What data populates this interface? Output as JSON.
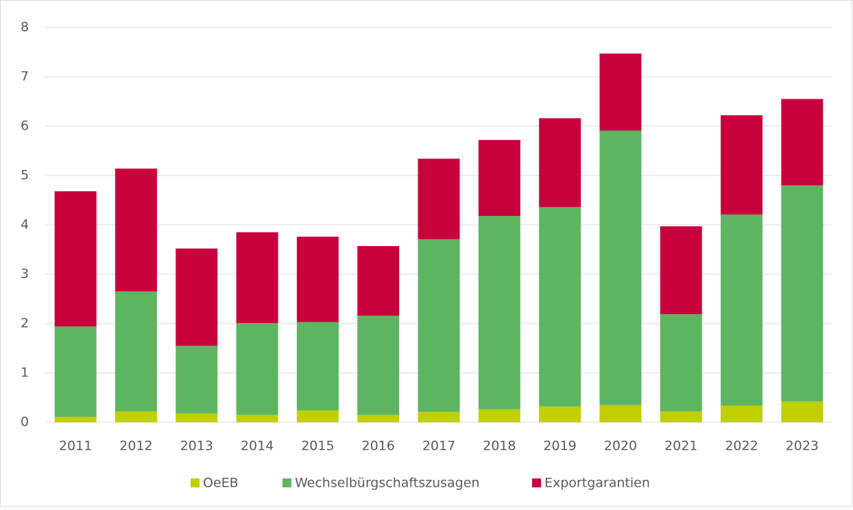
{
  "chart_data": {
    "type": "stacked_bar",
    "categories": [
      "2011",
      "2012",
      "2013",
      "2014",
      "2015",
      "2016",
      "2017",
      "2018",
      "2019",
      "2020",
      "2021",
      "2022",
      "2023"
    ],
    "series": [
      {
        "name": "OeEB",
        "color": "#bfcf00",
        "values": [
          0.11,
          0.22,
          0.18,
          0.15,
          0.24,
          0.15,
          0.21,
          0.26,
          0.32,
          0.35,
          0.22,
          0.34,
          0.42
        ]
      },
      {
        "name": "Wechselbürgschaftszusagen",
        "color": "#5db562",
        "values": [
          1.83,
          2.43,
          1.37,
          1.86,
          1.79,
          2.01,
          3.5,
          3.92,
          4.04,
          5.56,
          1.97,
          3.87,
          4.38
        ]
      },
      {
        "name": "Exportgarantien",
        "color": "#c8003c",
        "values": [
          2.74,
          2.49,
          1.97,
          1.84,
          1.73,
          1.41,
          1.63,
          1.54,
          1.8,
          1.56,
          1.78,
          2.01,
          1.75
        ]
      }
    ],
    "ylim": [
      0,
      8
    ],
    "yticks": [
      0,
      1,
      2,
      3,
      4,
      5,
      6,
      7,
      8
    ],
    "grid": true,
    "legend": "bottom"
  }
}
